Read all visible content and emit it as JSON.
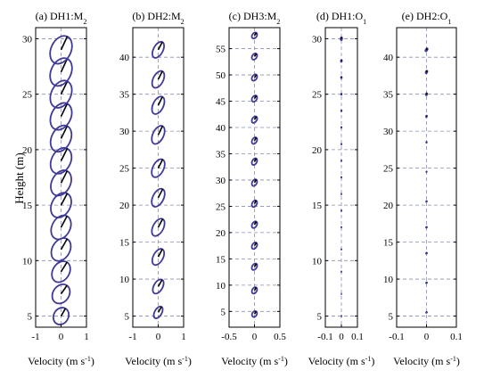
{
  "figure": {
    "ylabel": "Height (m)",
    "ellipse_color": "#3f3a98",
    "major_axis_color": "#000000",
    "grid_color": "#8a8fb4"
  },
  "chart_data": [
    {
      "type": "tidal-ellipse-profile",
      "title_prefix": "(a) DH1:M",
      "title_sub": "2",
      "xlabel": "Velocity (m s",
      "xlabel_sup": "-1",
      "xlabel_suffix": ")",
      "xlim": [
        -1,
        1
      ],
      "xticks": [
        -1,
        0,
        1
      ],
      "xtick_labels": [
        "-1",
        "0",
        "1"
      ],
      "ylim": [
        4,
        31
      ],
      "yticks": [
        5,
        10,
        15,
        20,
        25,
        30
      ],
      "ytick_labels": [
        "5",
        "10",
        "15",
        "20",
        "25",
        "30"
      ],
      "ellipses": [
        {
          "height": 5,
          "semi_major": 0.36,
          "semi_minor": 0.3,
          "inclination_deg": 60
        },
        {
          "height": 7,
          "semi_major": 0.42,
          "semi_minor": 0.33,
          "inclination_deg": 55
        },
        {
          "height": 9,
          "semi_major": 0.46,
          "semi_minor": 0.34,
          "inclination_deg": 58
        },
        {
          "height": 11,
          "semi_major": 0.5,
          "semi_minor": 0.36,
          "inclination_deg": 60
        },
        {
          "height": 13,
          "semi_major": 0.52,
          "semi_minor": 0.37,
          "inclination_deg": 62
        },
        {
          "height": 15,
          "semi_major": 0.54,
          "semi_minor": 0.38,
          "inclination_deg": 62
        },
        {
          "height": 17,
          "semi_major": 0.55,
          "semi_minor": 0.38,
          "inclination_deg": 63
        },
        {
          "height": 19,
          "semi_major": 0.56,
          "semi_minor": 0.39,
          "inclination_deg": 63
        },
        {
          "height": 21,
          "semi_major": 0.57,
          "semi_minor": 0.39,
          "inclination_deg": 64
        },
        {
          "height": 23,
          "semi_major": 0.58,
          "semi_minor": 0.4,
          "inclination_deg": 64
        },
        {
          "height": 25,
          "semi_major": 0.59,
          "semi_minor": 0.4,
          "inclination_deg": 64
        },
        {
          "height": 27,
          "semi_major": 0.6,
          "semi_minor": 0.41,
          "inclination_deg": 65
        },
        {
          "height": 29,
          "semi_major": 0.6,
          "semi_minor": 0.41,
          "inclination_deg": 65
        }
      ]
    },
    {
      "type": "tidal-ellipse-profile",
      "title_prefix": "(b) DH2:M",
      "title_sub": "2",
      "xlabel": "Velocity (m s",
      "xlabel_sup": "-1",
      "xlabel_suffix": ")",
      "xlim": [
        -1,
        1
      ],
      "xticks": [
        -1,
        0,
        1
      ],
      "xtick_labels": [
        "-1",
        "0",
        "1"
      ],
      "ylim": [
        3.5,
        44
      ],
      "yticks": [
        5,
        10,
        15,
        20,
        25,
        30,
        35,
        40
      ],
      "ytick_labels": [
        "5",
        "10",
        "15",
        "20",
        "25",
        "30",
        "35",
        "40"
      ],
      "ellipses": [
        {
          "height": 5.5,
          "semi_major": 0.4,
          "semi_minor": 0.22,
          "inclination_deg": 60
        },
        {
          "height": 9,
          "semi_major": 0.48,
          "semi_minor": 0.27,
          "inclination_deg": 60
        },
        {
          "height": 13,
          "semi_major": 0.54,
          "semi_minor": 0.3,
          "inclination_deg": 62
        },
        {
          "height": 17,
          "semi_major": 0.58,
          "semi_minor": 0.32,
          "inclination_deg": 62
        },
        {
          "height": 21,
          "semi_major": 0.6,
          "semi_minor": 0.33,
          "inclination_deg": 63
        },
        {
          "height": 25,
          "semi_major": 0.6,
          "semi_minor": 0.33,
          "inclination_deg": 63
        },
        {
          "height": 29.5,
          "semi_major": 0.6,
          "semi_minor": 0.33,
          "inclination_deg": 64
        },
        {
          "height": 33.5,
          "semi_major": 0.58,
          "semi_minor": 0.32,
          "inclination_deg": 64
        },
        {
          "height": 37,
          "semi_major": 0.56,
          "semi_minor": 0.31,
          "inclination_deg": 63
        },
        {
          "height": 41,
          "semi_major": 0.54,
          "semi_minor": 0.29,
          "inclination_deg": 62
        }
      ]
    },
    {
      "type": "tidal-ellipse-profile",
      "title_prefix": "(c) DH3:M",
      "title_sub": "2",
      "xlabel": "Velocity (m s",
      "xlabel_sup": "-1",
      "xlabel_suffix": ")",
      "xlim": [
        -0.5,
        0.5
      ],
      "xticks": [
        -0.5,
        0,
        0.5
      ],
      "xtick_labels": [
        "-0.5",
        "0",
        "0.5"
      ],
      "ylim": [
        2,
        59
      ],
      "yticks": [
        5,
        10,
        15,
        20,
        25,
        30,
        35,
        40,
        45,
        50,
        55
      ],
      "ytick_labels": [
        "5",
        "10",
        "15",
        "20",
        "25",
        "30",
        "35",
        "40",
        "45",
        "50",
        "55"
      ],
      "ellipses": [
        {
          "height": 4.5,
          "semi_major": 0.27,
          "semi_minor": 0.2,
          "inclination_deg": 60
        },
        {
          "height": 9,
          "semi_major": 0.3,
          "semi_minor": 0.2,
          "inclination_deg": 60
        },
        {
          "height": 13.5,
          "semi_major": 0.31,
          "semi_minor": 0.2,
          "inclination_deg": 58
        },
        {
          "height": 17.5,
          "semi_major": 0.31,
          "semi_minor": 0.2,
          "inclination_deg": 58
        },
        {
          "height": 21.5,
          "semi_major": 0.31,
          "semi_minor": 0.2,
          "inclination_deg": 60
        },
        {
          "height": 25.5,
          "semi_major": 0.31,
          "semi_minor": 0.2,
          "inclination_deg": 62
        },
        {
          "height": 29.5,
          "semi_major": 0.31,
          "semi_minor": 0.2,
          "inclination_deg": 62
        },
        {
          "height": 33.5,
          "semi_major": 0.31,
          "semi_minor": 0.2,
          "inclination_deg": 60
        },
        {
          "height": 37.5,
          "semi_major": 0.31,
          "semi_minor": 0.2,
          "inclination_deg": 60
        },
        {
          "height": 41.5,
          "semi_major": 0.31,
          "semi_minor": 0.2,
          "inclination_deg": 58
        },
        {
          "height": 45.5,
          "semi_major": 0.3,
          "semi_minor": 0.2,
          "inclination_deg": 58
        },
        {
          "height": 49.5,
          "semi_major": 0.3,
          "semi_minor": 0.2,
          "inclination_deg": 56
        },
        {
          "height": 53.5,
          "semi_major": 0.3,
          "semi_minor": 0.2,
          "inclination_deg": 56
        },
        {
          "height": 57.5,
          "semi_major": 0.29,
          "semi_minor": 0.2,
          "inclination_deg": 55
        }
      ]
    },
    {
      "type": "tidal-ellipse-profile",
      "title_prefix": "(d) DH1:O",
      "title_sub": "1",
      "xlabel": "Velocity (m s",
      "xlabel_sup": "-1",
      "xlabel_suffix": ")",
      "xlim": [
        -0.1,
        0.1
      ],
      "xticks": [
        -0.1,
        0,
        0.1
      ],
      "xtick_labels": [
        "-0.1",
        "0",
        "0.1"
      ],
      "ylim": [
        4,
        31
      ],
      "yticks": [
        5,
        10,
        15,
        20,
        25,
        30
      ],
      "ytick_labels": [
        "5",
        "10",
        "15",
        "20",
        "25",
        "30"
      ],
      "ellipses": [
        {
          "height": 5,
          "semi_major": 0.01,
          "semi_minor": 0.007,
          "inclination_deg": 80
        },
        {
          "height": 7,
          "semi_major": 0.011,
          "semi_minor": 0.008,
          "inclination_deg": 80
        },
        {
          "height": 9,
          "semi_major": 0.012,
          "semi_minor": 0.008,
          "inclination_deg": 80
        },
        {
          "height": 11,
          "semi_major": 0.012,
          "semi_minor": 0.008,
          "inclination_deg": 82
        },
        {
          "height": 13,
          "semi_major": 0.013,
          "semi_minor": 0.008,
          "inclination_deg": 82
        },
        {
          "height": 14.5,
          "semi_major": 0.014,
          "semi_minor": 0.009,
          "inclination_deg": 83
        },
        {
          "height": 16,
          "semi_major": 0.014,
          "semi_minor": 0.009,
          "inclination_deg": 84
        },
        {
          "height": 17.5,
          "semi_major": 0.015,
          "semi_minor": 0.009,
          "inclination_deg": 85
        },
        {
          "height": 19,
          "semi_major": 0.015,
          "semi_minor": 0.009,
          "inclination_deg": 86
        },
        {
          "height": 20.5,
          "semi_major": 0.016,
          "semi_minor": 0.01,
          "inclination_deg": 86
        },
        {
          "height": 22,
          "semi_major": 0.018,
          "semi_minor": 0.01,
          "inclination_deg": 87
        },
        {
          "height": 23.5,
          "semi_major": 0.02,
          "semi_minor": 0.011,
          "inclination_deg": 87
        },
        {
          "height": 25,
          "semi_major": 0.024,
          "semi_minor": 0.012,
          "inclination_deg": 87
        },
        {
          "height": 26.5,
          "semi_major": 0.03,
          "semi_minor": 0.015,
          "inclination_deg": 86
        },
        {
          "height": 28,
          "semi_major": 0.04,
          "semi_minor": 0.02,
          "inclination_deg": 85
        },
        {
          "height": 30,
          "semi_major": 0.06,
          "semi_minor": 0.03,
          "inclination_deg": 85
        }
      ]
    },
    {
      "type": "tidal-ellipse-profile",
      "title_prefix": "(e) DH2:O",
      "title_sub": "1",
      "xlabel": "Velocity (m s",
      "xlabel_sup": "-1",
      "xlabel_suffix": ")",
      "xlim": [
        -0.1,
        0.1
      ],
      "xticks": [
        -0.1,
        0,
        0.1
      ],
      "xtick_labels": [
        "-0.1",
        "0",
        "0.1"
      ],
      "ylim": [
        3.5,
        44
      ],
      "yticks": [
        5,
        10,
        15,
        20,
        25,
        30,
        35,
        40
      ],
      "ytick_labels": [
        "5",
        "10",
        "15",
        "20",
        "25",
        "30",
        "35",
        "40"
      ],
      "ellipses": [
        {
          "height": 5.5,
          "semi_major": 0.03,
          "semi_minor": 0.022,
          "inclination_deg": 40
        },
        {
          "height": 9.5,
          "semi_major": 0.032,
          "semi_minor": 0.022,
          "inclination_deg": 40
        },
        {
          "height": 13.5,
          "semi_major": 0.032,
          "semi_minor": 0.022,
          "inclination_deg": 45
        },
        {
          "height": 17,
          "semi_major": 0.032,
          "semi_minor": 0.021,
          "inclination_deg": 50
        },
        {
          "height": 20.5,
          "semi_major": 0.03,
          "semi_minor": 0.02,
          "inclination_deg": 60
        },
        {
          "height": 24.5,
          "semi_major": 0.025,
          "semi_minor": 0.012,
          "inclination_deg": 85
        },
        {
          "height": 28.5,
          "semi_major": 0.03,
          "semi_minor": 0.015,
          "inclination_deg": 85
        },
        {
          "height": 32,
          "semi_major": 0.05,
          "semi_minor": 0.025,
          "inclination_deg": 80
        },
        {
          "height": 35,
          "semi_major": 0.07,
          "semi_minor": 0.035,
          "inclination_deg": 75
        },
        {
          "height": 38,
          "semi_major": 0.085,
          "semi_minor": 0.045,
          "inclination_deg": 68
        },
        {
          "height": 41,
          "semi_major": 0.1,
          "semi_minor": 0.05,
          "inclination_deg": 60
        }
      ]
    }
  ]
}
